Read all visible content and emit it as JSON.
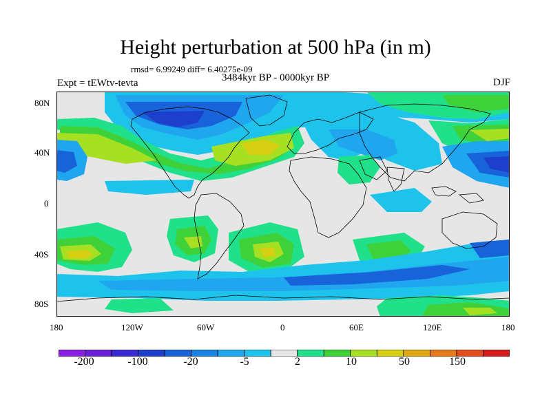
{
  "title": "Height perturbation at 500 hPa (in m)",
  "stats": "rmsd= 6.99249 diff= 6.40275e-09",
  "experiment": "Expt = tEWtv-tevta",
  "period": "3484kyr BP - 0000kyr BP",
  "season": "DJF",
  "lat_labels": [
    "80N",
    "40N",
    "0",
    "40S",
    "80S"
  ],
  "lon_labels": [
    "180",
    "120W",
    "60W",
    "0",
    "60E",
    "120E",
    "180"
  ],
  "colorbar": {
    "colors": [
      "#8b1fe6",
      "#6a1fd8",
      "#3b2ad4",
      "#1d3fcc",
      "#1862da",
      "#1a84e6",
      "#20a6ef",
      "#1ec3ec",
      "#e6e6e6",
      "#21e08a",
      "#3ed13a",
      "#a7df22",
      "#d6cf12",
      "#e2a716",
      "#e87a1e",
      "#e24c1f",
      "#d81c1c"
    ],
    "labels": [
      "-200",
      "-100",
      "-20",
      "-5",
      "2",
      "10",
      "50",
      "150"
    ]
  },
  "legend_colors": {
    "neutral": "#e6e6e6",
    "light_blue": "#1ec3ec",
    "mid_blue": "#20a6ef",
    "blue": "#1862da",
    "dark_blue": "#1d3fcc",
    "green": "#21e08a",
    "lime": "#3ed13a",
    "yellow_green": "#a7df22",
    "yellow": "#d6cf12",
    "orange": "#e2a716",
    "coast": "#000000"
  }
}
